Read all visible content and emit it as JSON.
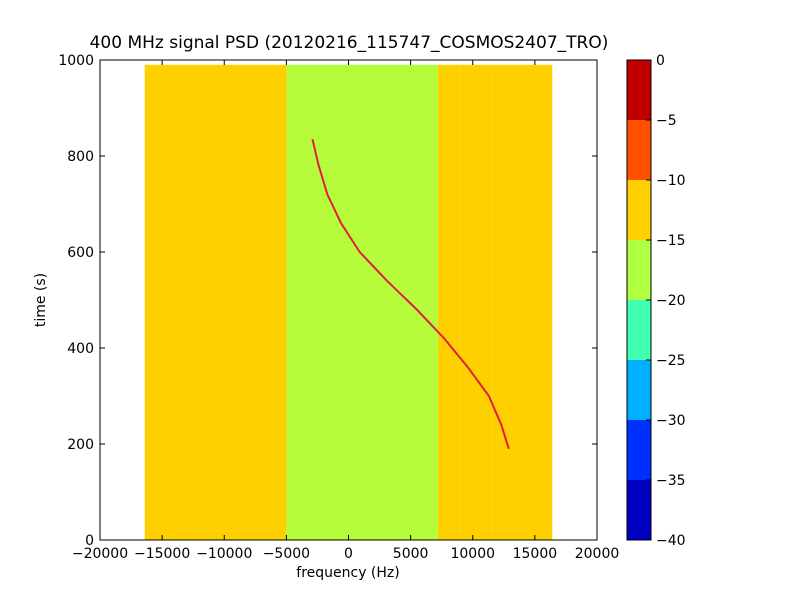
{
  "chart_data": {
    "type": "heatmap",
    "title": "400 MHz signal PSD (20120216_115747_COSMOS2407_TRO)",
    "xlabel": "frequency (Hz)",
    "ylabel": "time (s)",
    "xlim": [
      -20000,
      20000
    ],
    "ylim": [
      0,
      1000
    ],
    "x_ticks": [
      -20000,
      -15000,
      -10000,
      -5000,
      0,
      5000,
      10000,
      15000,
      20000
    ],
    "y_ticks": [
      0,
      200,
      400,
      600,
      800,
      1000
    ],
    "x_tick_labels": [
      "−20000",
      "−15000",
      "−10000",
      "−5000",
      "0",
      "5000",
      "10000",
      "15000",
      "20000"
    ],
    "y_tick_labels": [
      "0",
      "200",
      "400",
      "600",
      "800",
      "1000"
    ],
    "data_extent": {
      "x": [
        -16400,
        16400
      ],
      "y": [
        0,
        990
      ]
    },
    "frequency_bands": [
      {
        "x": [
          -16400,
          -11500
        ],
        "level": -11.8
      },
      {
        "x": [
          -11500,
          -5000
        ],
        "level": -11.0
      },
      {
        "x": [
          -5000,
          7200
        ],
        "level": -16.5
      },
      {
        "x": [
          7200,
          9000
        ],
        "level": -11.5
      },
      {
        "x": [
          9000,
          11500
        ],
        "level": -14.0
      },
      {
        "x": [
          11500,
          16400
        ],
        "level": -11.0
      }
    ],
    "doppler_trace": {
      "time_s": [
        190,
        240,
        300,
        360,
        420,
        480,
        540,
        600,
        660,
        720,
        780,
        835
      ],
      "frequency_hz": [
        12900,
        12300,
        11300,
        9600,
        7700,
        5500,
        3100,
        900,
        -600,
        -1700,
        -2400,
        -2900
      ],
      "level": -2
    },
    "colorbar": {
      "levels": [
        -40,
        -35,
        -30,
        -25,
        -20,
        -15,
        -10,
        -5,
        0
      ],
      "tick_labels": [
        "−40",
        "−35",
        "−30",
        "−25",
        "−20",
        "−15",
        "−10",
        "−5",
        "0"
      ],
      "colors": [
        "#0000c0",
        "#0030ff",
        "#00b0ff",
        "#40ffb0",
        "#b0ff40",
        "#ffd000",
        "#ff5000",
        "#c00000"
      ]
    }
  }
}
